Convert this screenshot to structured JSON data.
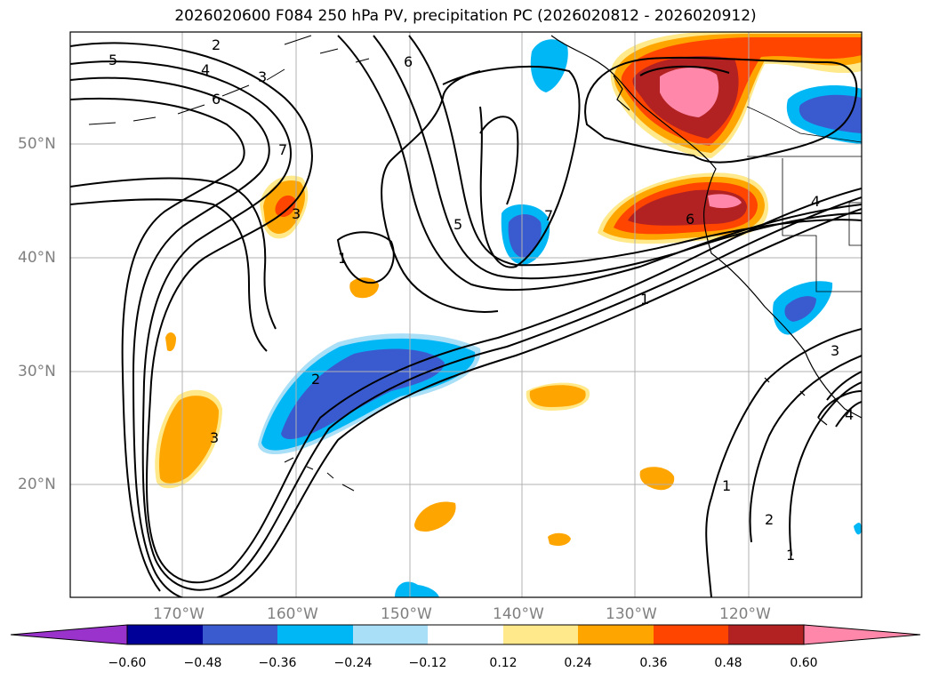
{
  "title": "2026020600 F084 250 hPa PV, precipitation PC (2026020812 - 2026020912)",
  "lat_labels": [
    "50°N",
    "40°N",
    "30°N",
    "20°N"
  ],
  "lon_labels": [
    "170°W",
    "160°W",
    "150°W",
    "140°W",
    "130°W",
    "120°W"
  ],
  "contour_labels": [
    "2",
    "4",
    "3",
    "5",
    "6",
    "7",
    "3",
    "1",
    "5",
    "7",
    "6",
    "6",
    "1",
    "2",
    "3",
    "1",
    "2",
    "1",
    "4",
    "4",
    "3"
  ],
  "colorbar": {
    "ticks": [
      "−0.60",
      "−0.48",
      "−0.36",
      "−0.24",
      "−0.12",
      "0.12",
      "0.24",
      "0.36",
      "0.48",
      "0.60"
    ],
    "colors": [
      "#9933cc",
      "#000099",
      "#3a5bd0",
      "#00b7f5",
      "#aadff8",
      "#ffffff",
      "#ffe98a",
      "#ffa500",
      "#ff4500",
      "#b22222",
      "#ff88aa",
      "#ff88aa"
    ]
  }
}
